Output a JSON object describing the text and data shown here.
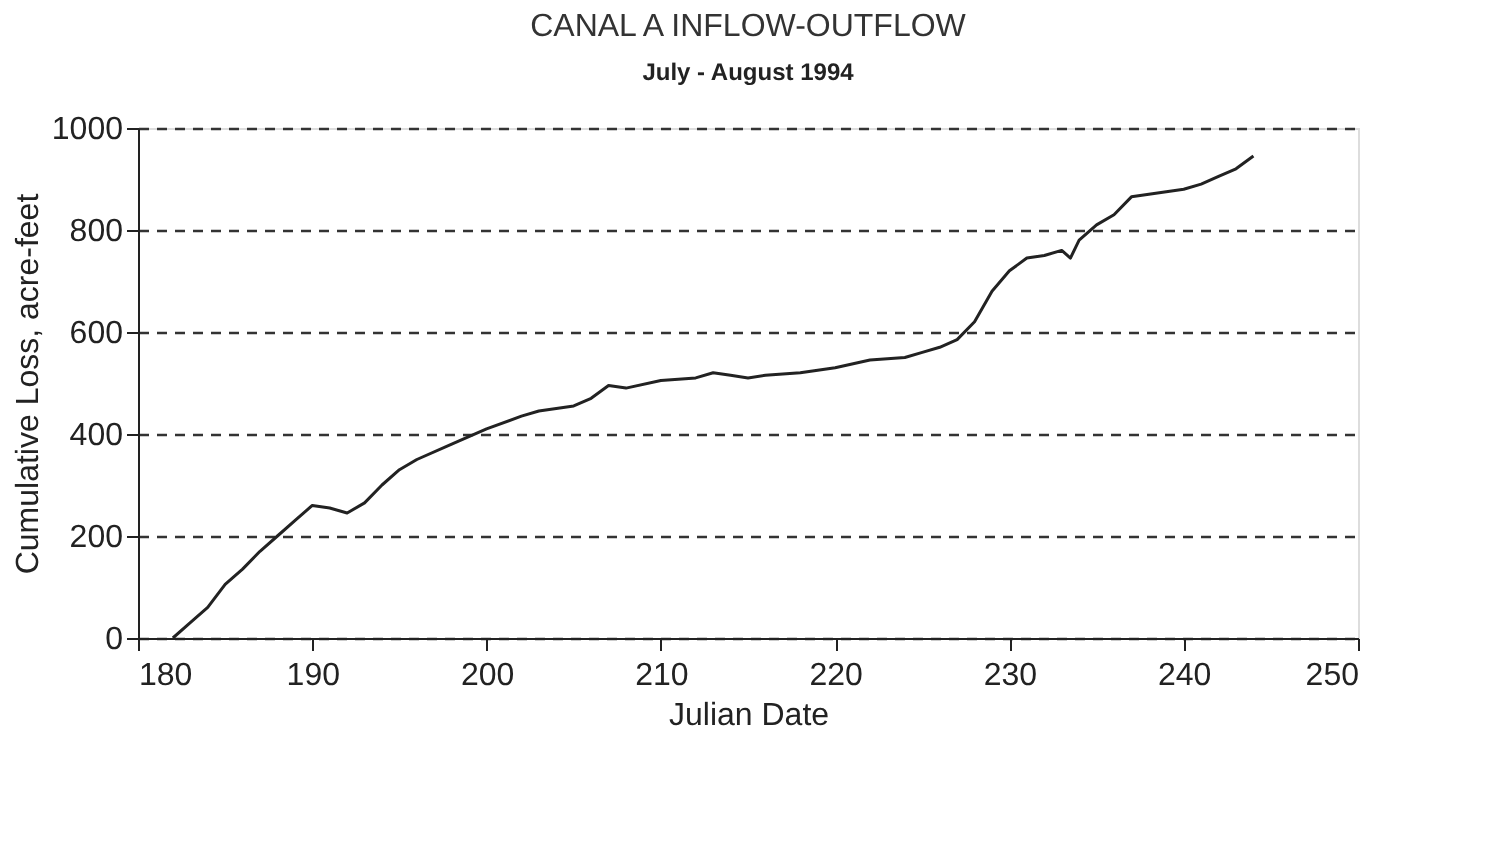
{
  "chart_data": {
    "type": "line",
    "title": "CANAL A INFLOW-OUTFLOW",
    "subtitle": "July - August 1994",
    "xlabel": "Julian Date",
    "ylabel": "Cumulative Loss, acre-feet",
    "x": [
      182,
      183,
      184,
      185,
      186,
      187,
      188,
      189,
      190,
      191,
      192,
      193,
      194,
      195,
      196,
      198,
      200,
      202,
      203,
      205,
      206,
      207,
      208,
      210,
      212,
      213,
      214,
      215,
      216,
      218,
      220,
      222,
      224,
      225,
      226,
      227,
      228,
      229,
      230,
      231,
      232,
      233,
      233.5,
      234,
      235,
      236,
      237,
      238,
      240,
      241,
      242,
      243,
      244
    ],
    "series": [
      {
        "color": "#222222",
        "values": [
          0,
          30,
          60,
          105,
          135,
          170,
          200,
          230,
          260,
          255,
          245,
          265,
          300,
          330,
          350,
          380,
          410,
          435,
          445,
          455,
          470,
          495,
          490,
          505,
          510,
          520,
          515,
          510,
          515,
          520,
          530,
          545,
          550,
          560,
          570,
          585,
          620,
          680,
          720,
          745,
          750,
          760,
          745,
          780,
          810,
          830,
          865,
          870,
          880,
          890,
          905,
          920,
          945
        ]
      }
    ],
    "xlim": [
      180,
      250
    ],
    "xticks": [
      180,
      190,
      200,
      210,
      220,
      230,
      240,
      250
    ],
    "ylim": [
      0,
      1000
    ],
    "yticks": [
      0,
      200,
      400,
      600,
      800,
      1000
    ],
    "grid": "y",
    "line_style": "solid",
    "marker": "none"
  }
}
